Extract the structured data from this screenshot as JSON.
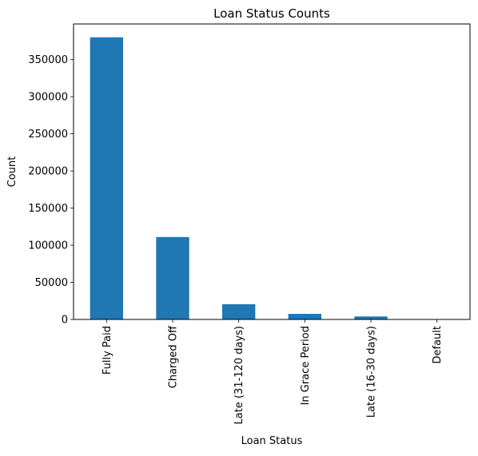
{
  "chart_data": {
    "type": "bar",
    "title": "Loan Status Counts",
    "xlabel": "Loan Status",
    "ylabel": "Count",
    "categories": [
      "Fully Paid",
      "Charged Off",
      "Late (31-120 days)",
      "In Grace Period",
      "Late (16-30 days)",
      "Default"
    ],
    "values": [
      380000,
      111000,
      20500,
      7500,
      4000,
      500
    ],
    "ylim": [
      0,
      398000
    ],
    "yticks": [
      0,
      50000,
      100000,
      150000,
      200000,
      250000,
      300000,
      350000
    ],
    "ytick_labels": [
      "0",
      "50000",
      "100000",
      "150000",
      "200000",
      "250000",
      "300000",
      "350000"
    ],
    "bar_color": "#1f77b4",
    "grid": false,
    "legend": "none"
  }
}
